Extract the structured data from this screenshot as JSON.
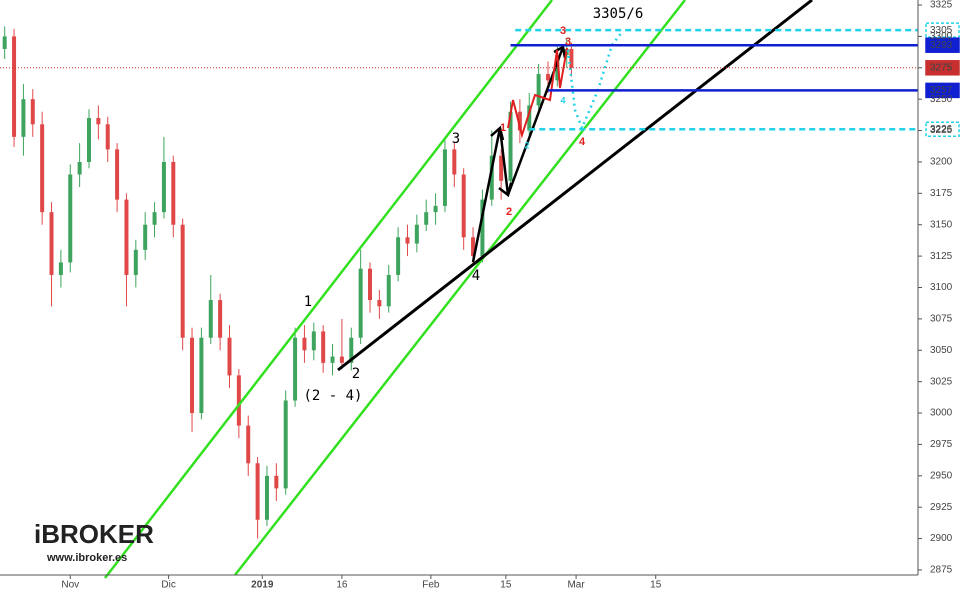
{
  "chart_data": {
    "type": "candlestick",
    "x": [
      1,
      3,
      5,
      7,
      9,
      11,
      13,
      15,
      17,
      19,
      21,
      23,
      25,
      27,
      29,
      31,
      33,
      35,
      37,
      39,
      41,
      43,
      45,
      47,
      49,
      51,
      53,
      55,
      57,
      59,
      61,
      63,
      65,
      67,
      69,
      71,
      73,
      75,
      77,
      79,
      81,
      83,
      85,
      87,
      89,
      91,
      93,
      95,
      97,
      99,
      101,
      103,
      105,
      107,
      109,
      111,
      113,
      115,
      117,
      119,
      121,
      122
    ],
    "open": [
      3290,
      3300,
      3220,
      3250,
      3230,
      3160,
      3110,
      3120,
      3190,
      3200,
      3235,
      3230,
      3210,
      3170,
      3110,
      3130,
      3150,
      3160,
      3200,
      3150,
      3060,
      3000,
      3060,
      3090,
      3060,
      3030,
      2990,
      2960,
      2915,
      2950,
      2940,
      3010,
      3060,
      3050,
      3065,
      3040,
      3045,
      3040,
      3060,
      3115,
      3090,
      3085,
      3110,
      3140,
      3135,
      3150,
      3160,
      3165,
      3210,
      3190,
      3140,
      3125,
      3170,
      3205,
      3185,
      3240,
      3225,
      3245,
      3270,
      3265,
      3285,
      3290
    ],
    "high": [
      3308,
      3306,
      3262,
      3258,
      3240,
      3168,
      3130,
      3198,
      3215,
      3242,
      3245,
      3236,
      3215,
      3175,
      3138,
      3160,
      3168,
      3220,
      3205,
      3155,
      3068,
      3068,
      3110,
      3095,
      3070,
      3035,
      2998,
      2965,
      2958,
      2960,
      3018,
      3068,
      3070,
      3072,
      3070,
      3055,
      3075,
      3068,
      3130,
      3120,
      3098,
      3118,
      3148,
      3150,
      3158,
      3170,
      3175,
      3220,
      3215,
      3195,
      3148,
      3178,
      3225,
      3210,
      3248,
      3250,
      3255,
      3278,
      3280,
      3292,
      3298,
      3295
    ],
    "low": [
      3282,
      3212,
      3205,
      3220,
      3150,
      3085,
      3100,
      3112,
      3180,
      3195,
      3218,
      3200,
      3160,
      3085,
      3100,
      3122,
      3140,
      3155,
      3140,
      3050,
      2985,
      2995,
      3055,
      3050,
      3020,
      2980,
      2950,
      2900,
      2910,
      2930,
      2935,
      3005,
      3040,
      3042,
      3032,
      3030,
      3035,
      3034,
      3055,
      3080,
      3075,
      3080,
      3105,
      3125,
      3128,
      3145,
      3150,
      3160,
      3180,
      3130,
      3118,
      3120,
      3165,
      3170,
      3180,
      3215,
      3220,
      3240,
      3255,
      3260,
      3275,
      3268
    ],
    "close": [
      3300,
      3220,
      3250,
      3230,
      3160,
      3110,
      3120,
      3190,
      3200,
      3235,
      3230,
      3210,
      3170,
      3110,
      3130,
      3150,
      3160,
      3200,
      3150,
      3060,
      3000,
      3060,
      3090,
      3060,
      3030,
      2990,
      2960,
      2915,
      2950,
      2940,
      3010,
      3060,
      3050,
      3065,
      3040,
      3045,
      3040,
      3060,
      3115,
      3090,
      3085,
      3110,
      3140,
      3135,
      3150,
      3160,
      3165,
      3210,
      3190,
      3140,
      3125,
      3170,
      3205,
      3185,
      3240,
      3225,
      3245,
      3270,
      3265,
      3285,
      3290,
      3275
    ],
    "up_color": "#3da35d",
    "down_color": "#e04848",
    "xlim": [
      0,
      196
    ],
    "xticks": [
      {
        "value": 15,
        "label": "Nov"
      },
      {
        "value": 36,
        "label": "Dic"
      },
      {
        "value": 56,
        "label": "2019"
      },
      {
        "value": 73,
        "label": "16"
      },
      {
        "value": 92,
        "label": "Feb"
      },
      {
        "value": 108,
        "label": "15"
      },
      {
        "value": 123,
        "label": "Mar"
      },
      {
        "value": 140,
        "label": "15"
      }
    ],
    "ylim": [
      2871,
      3329
    ],
    "yticks": [
      2875,
      2900,
      2925,
      2950,
      2975,
      3000,
      3025,
      3050,
      3075,
      3100,
      3125,
      3150,
      3175,
      3200,
      3225,
      3250,
      3275,
      3300,
      3325
    ],
    "levels": [
      {
        "value": 3305,
        "color": "#22d3e8",
        "style": "dashed",
        "x_start": 110
      },
      {
        "value": 3293,
        "color": "#1020d0",
        "style": "solid",
        "x_start": 109
      },
      {
        "value": 3275,
        "color": "#c83030",
        "style": "dotted",
        "x_start": 0
      },
      {
        "value": 3257,
        "color": "#1020d0",
        "style": "solid",
        "x_start": 117
      },
      {
        "value": 3226,
        "color": "#22d3e8",
        "style": "dashed",
        "x_start": 113
      }
    ],
    "annotations": [
      "1",
      "2",
      "(2 - 4)",
      "3",
      "4",
      "3305/6",
      "1",
      "2",
      "3",
      "4",
      "3",
      "4",
      "2"
    ],
    "logo": {
      "brand": "iBROKER",
      "url": "www.ibroker.es"
    }
  }
}
